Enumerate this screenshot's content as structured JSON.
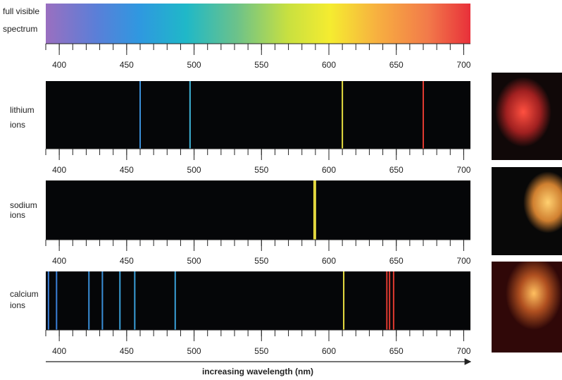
{
  "chart_data": [
    {
      "type": "continuous",
      "label_lines": [
        "full visible",
        "spectrum"
      ],
      "xlim": [
        390,
        705
      ],
      "xticks": [
        400,
        450,
        500,
        550,
        600,
        650,
        700
      ],
      "xminorticks": [
        390,
        400,
        410,
        420,
        430,
        440,
        450,
        460,
        470,
        480,
        490,
        500,
        510,
        520,
        530,
        540,
        550,
        560,
        570,
        580,
        590,
        600,
        610,
        620,
        630,
        640,
        650,
        660,
        670,
        680,
        690,
        700
      ]
    },
    {
      "type": "emission",
      "label_lines": [
        "lithium",
        "ions"
      ],
      "xlim": [
        390,
        705
      ],
      "xticks": [
        400,
        450,
        500,
        550,
        600,
        650,
        700
      ],
      "xminorticks": [
        390,
        400,
        410,
        420,
        430,
        440,
        450,
        460,
        470,
        480,
        490,
        500,
        510,
        520,
        530,
        540,
        550,
        560,
        570,
        580,
        590,
        600,
        610,
        620,
        630,
        640,
        650,
        660,
        670,
        680,
        690,
        700
      ],
      "wavelengths": [
        460,
        497,
        610,
        670
      ],
      "colors": [
        "#3a8fd8",
        "#3fb5d8",
        "#e8e040",
        "#e03a30"
      ]
    },
    {
      "type": "emission",
      "label_lines": [
        "sodium",
        "ions"
      ],
      "xlim": [
        390,
        705
      ],
      "xticks": [
        400,
        450,
        500,
        550,
        600,
        650,
        700
      ],
      "xminorticks": [
        390,
        400,
        410,
        420,
        430,
        440,
        450,
        460,
        470,
        480,
        490,
        500,
        510,
        520,
        530,
        540,
        550,
        560,
        570,
        580,
        590,
        600,
        610,
        620,
        630,
        640,
        650,
        660,
        670,
        680,
        690,
        700
      ],
      "wavelengths": [
        589,
        590
      ],
      "colors": [
        "#e8dc40",
        "#e8dc40"
      ]
    },
    {
      "type": "emission",
      "label_lines": [
        "calcium",
        "ions"
      ],
      "xlim": [
        390,
        705
      ],
      "xticks": [
        400,
        450,
        500,
        550,
        600,
        650,
        700
      ],
      "xminorticks": [
        390,
        400,
        410,
        420,
        430,
        440,
        450,
        460,
        470,
        480,
        490,
        500,
        510,
        520,
        530,
        540,
        550,
        560,
        570,
        580,
        590,
        600,
        610,
        620,
        630,
        640,
        650,
        660,
        670,
        680,
        690,
        700
      ],
      "wavelengths": [
        392,
        398,
        422,
        432,
        445,
        456,
        486,
        611,
        643,
        645,
        648
      ],
      "colors": [
        "#3a7fd8",
        "#3a7fd8",
        "#3a8fd8",
        "#3a8fd8",
        "#3a9fd8",
        "#3a9fd8",
        "#3aa0d8",
        "#e8dc40",
        "#e03a30",
        "#e03a30",
        "#e03a30"
      ],
      "xlabel": "increasing wavelength (nm)"
    }
  ]
}
